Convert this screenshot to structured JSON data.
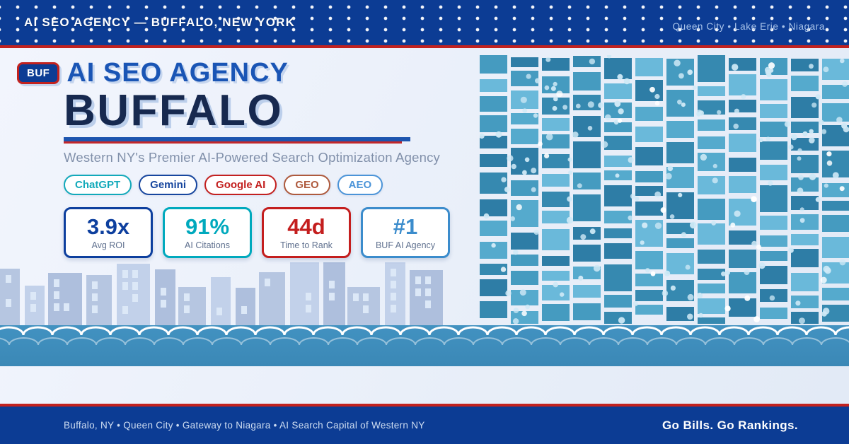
{
  "header": {
    "brand": "AI SEO AGENCY — BUFFALO, NEW YORK",
    "locations": "Queen City  •  Lake Erie  •  Niagara"
  },
  "hero": {
    "badge": "BUF",
    "title_top": "AI SEO AGENCY",
    "title_city": "BUFFALO",
    "subtitle": "Western NY's Premier AI-Powered Search Optimization Agency",
    "pills": [
      {
        "label": "ChatGPT",
        "color": "#12a9ba"
      },
      {
        "label": "Gemini",
        "color": "#17469e"
      },
      {
        "label": "Google AI",
        "color": "#c3201f"
      },
      {
        "label": "GEO",
        "color": "#ae5a3d"
      },
      {
        "label": "AEO",
        "color": "#4b94d8"
      }
    ],
    "stats": [
      {
        "value": "3.9x",
        "label": "Avg ROI",
        "color": "#0d3f9e"
      },
      {
        "value": "91%",
        "label": "AI Citations",
        "color": "#00a9bd"
      },
      {
        "value": "44d",
        "label": "Time to Rank",
        "color": "#c41e1e"
      },
      {
        "value": "#1",
        "label": "BUF AI Agency",
        "color": "#3b8ccc"
      }
    ]
  },
  "footer": {
    "left": "Buffalo, NY  •  Queen City  •  Gateway to Niagara  •  AI Search Capital of Western NY",
    "right": "Go Bills. Go Rankings."
  },
  "palette": {
    "banner_blue": "#0c3c94",
    "accent_red": "#c2221f",
    "underline_blue": "#1d55af",
    "mosaic_blues": [
      "#6ab9da",
      "#55aacd",
      "#459bc0",
      "#3689b0",
      "#2e7da6"
    ],
    "mosaic_dot": "#cfe9f6",
    "skyline_buildings": [
      "#b6c6e1",
      "#c2d1ea",
      "#aebfdd"
    ],
    "skyline_window": "#dce8f7",
    "wave_top": "#4292c1",
    "wave_bottom": "#3b88b6",
    "wave_arc": "#ffffff"
  }
}
